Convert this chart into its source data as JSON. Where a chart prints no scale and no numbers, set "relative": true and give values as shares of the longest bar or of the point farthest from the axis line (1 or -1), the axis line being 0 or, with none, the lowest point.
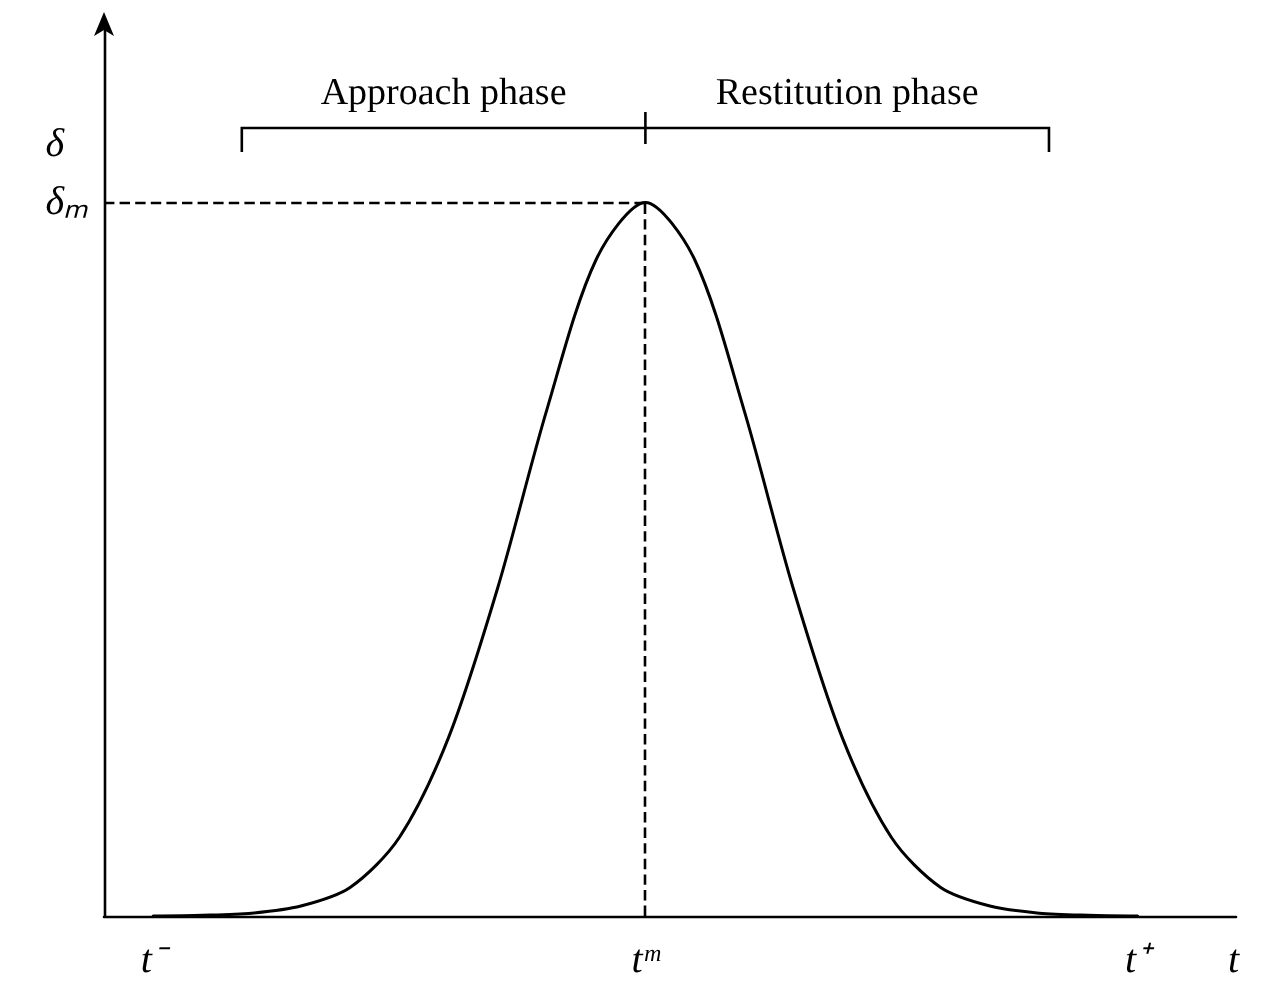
{
  "chart_data": {
    "type": "line",
    "relative": true,
    "xlabel": "t",
    "ylabel": "δ",
    "categories": [
      null,
      "t⁻",
      null,
      null,
      null,
      null,
      null,
      null,
      null,
      null,
      null,
      "tᵐ",
      null,
      null,
      null,
      null,
      null,
      null,
      null,
      null,
      null,
      "t⁺",
      null,
      null
    ],
    "values": [
      null,
      0,
      0.001,
      0.004,
      0.014,
      0.04,
      0.11,
      0.25,
      0.46,
      0.71,
      0.92,
      1,
      0.92,
      0.71,
      0.46,
      0.25,
      0.11,
      0.04,
      0.014,
      0.004,
      0.001,
      0,
      null,
      null
    ],
    "color": "#000000",
    "marker": "none",
    "grid": false,
    "ref_lines": [
      {
        "axis": "y",
        "value": 1,
        "label": "δₘ",
        "line_style": "dashed",
        "color": "#000000"
      },
      {
        "axis": "x",
        "value": "tᵐ",
        "label": null,
        "line_style": "dashed",
        "color": "#000000"
      }
    ],
    "annotations": [
      "Approach phase",
      "Restitution phase"
    ]
  }
}
